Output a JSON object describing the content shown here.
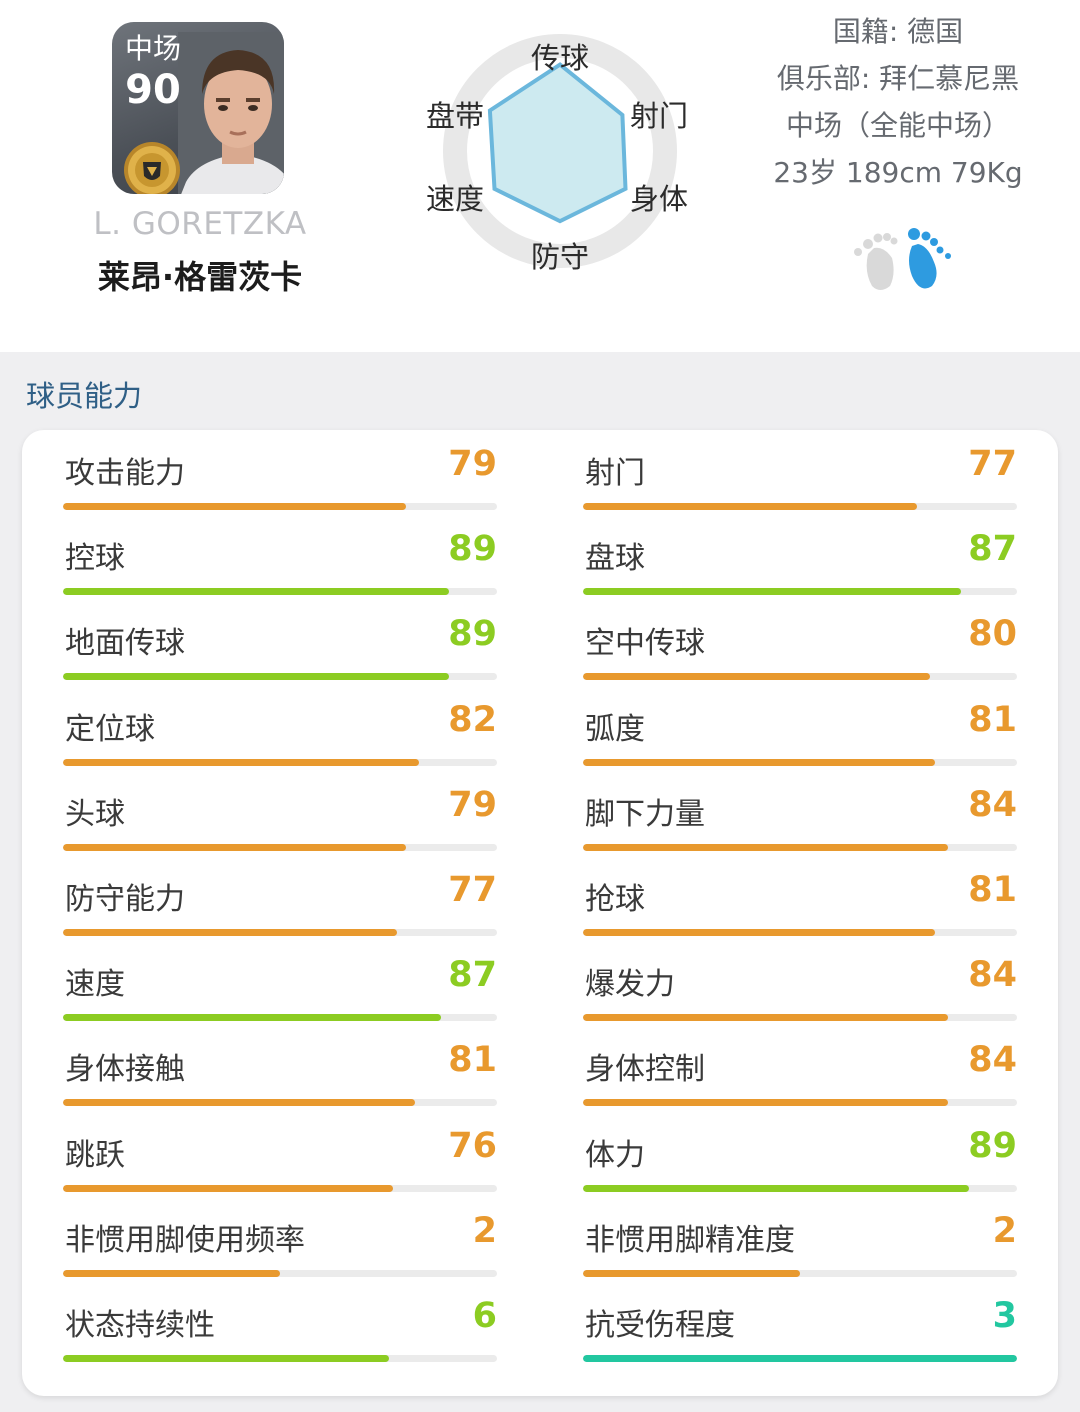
{
  "player": {
    "position": "中场",
    "overall": "90",
    "name_en": "L. GORETZKA",
    "name_cn": "莱昂·格雷茨卡"
  },
  "info": {
    "nationality": "国籍: 德国",
    "club": "俱乐部: 拜仁慕尼黑",
    "role": "中场（全能中场）",
    "physique": "23岁 189cm 79Kg"
  },
  "radar": {
    "axes": [
      "传球",
      "射门",
      "身体",
      "防守",
      "速度",
      "盘带"
    ],
    "levels": [
      0.96,
      0.8,
      0.84,
      0.78,
      0.84,
      0.9
    ]
  },
  "stats_section": {
    "title": "球员能力"
  },
  "stats_left": [
    {
      "label": "攻击能力",
      "value": "79",
      "level": 0.79,
      "color": "#e8992e"
    },
    {
      "label": "控球",
      "value": "89",
      "level": 0.89,
      "color": "#8ccc22"
    },
    {
      "label": "地面传球",
      "value": "89",
      "level": 0.89,
      "color": "#8ccc22"
    },
    {
      "label": "定位球",
      "value": "82",
      "level": 0.82,
      "color": "#e8992e"
    },
    {
      "label": "头球",
      "value": "79",
      "level": 0.79,
      "color": "#e8992e"
    },
    {
      "label": "防守能力",
      "value": "77",
      "level": 0.77,
      "color": "#e8992e"
    },
    {
      "label": "速度",
      "value": "87",
      "level": 0.87,
      "color": "#8ccc22"
    },
    {
      "label": "身体接触",
      "value": "81",
      "level": 0.81,
      "color": "#e8992e"
    },
    {
      "label": "跳跃",
      "value": "76",
      "level": 0.76,
      "color": "#e8992e"
    },
    {
      "label": "非惯用脚使用频率",
      "value": "2",
      "level": 0.5,
      "color": "#e8992e"
    },
    {
      "label": "状态持续性",
      "value": "6",
      "level": 0.75,
      "color": "#8ccc22"
    }
  ],
  "stats_right": [
    {
      "label": "射门",
      "value": "77",
      "level": 0.77,
      "color": "#e8992e"
    },
    {
      "label": "盘球",
      "value": "87",
      "level": 0.87,
      "color": "#8ccc22"
    },
    {
      "label": "空中传球",
      "value": "80",
      "level": 0.8,
      "color": "#e8992e"
    },
    {
      "label": "弧度",
      "value": "81",
      "level": 0.81,
      "color": "#e8992e"
    },
    {
      "label": "脚下力量",
      "value": "84",
      "level": 0.84,
      "color": "#e8992e"
    },
    {
      "label": "抢球",
      "value": "81",
      "level": 0.81,
      "color": "#e8992e"
    },
    {
      "label": "爆发力",
      "value": "84",
      "level": 0.84,
      "color": "#e8992e"
    },
    {
      "label": "身体控制",
      "value": "84",
      "level": 0.84,
      "color": "#e8992e"
    },
    {
      "label": "体力",
      "value": "89",
      "level": 0.89,
      "color": "#8ccc22"
    },
    {
      "label": "非惯用脚精准度",
      "value": "2",
      "level": 0.5,
      "color": "#e8992e"
    },
    {
      "label": "抗受伤程度",
      "value": "3",
      "level": 1.0,
      "color": "#22c7a0"
    }
  ],
  "colors": {
    "orange": "#e8992e",
    "green": "#8ccc22",
    "teal": "#22c7a0",
    "section_title": "#2f5f86",
    "radar_fill": "#cdeaf0",
    "radar_stroke": "#6bb7dc",
    "foot_active": "#2e9be0",
    "foot_inactive": "#d9d9d9"
  },
  "icons": {
    "badge": "gold-medal-icon",
    "foot_left": "left-foot-icon",
    "foot_right": "right-foot-icon"
  }
}
